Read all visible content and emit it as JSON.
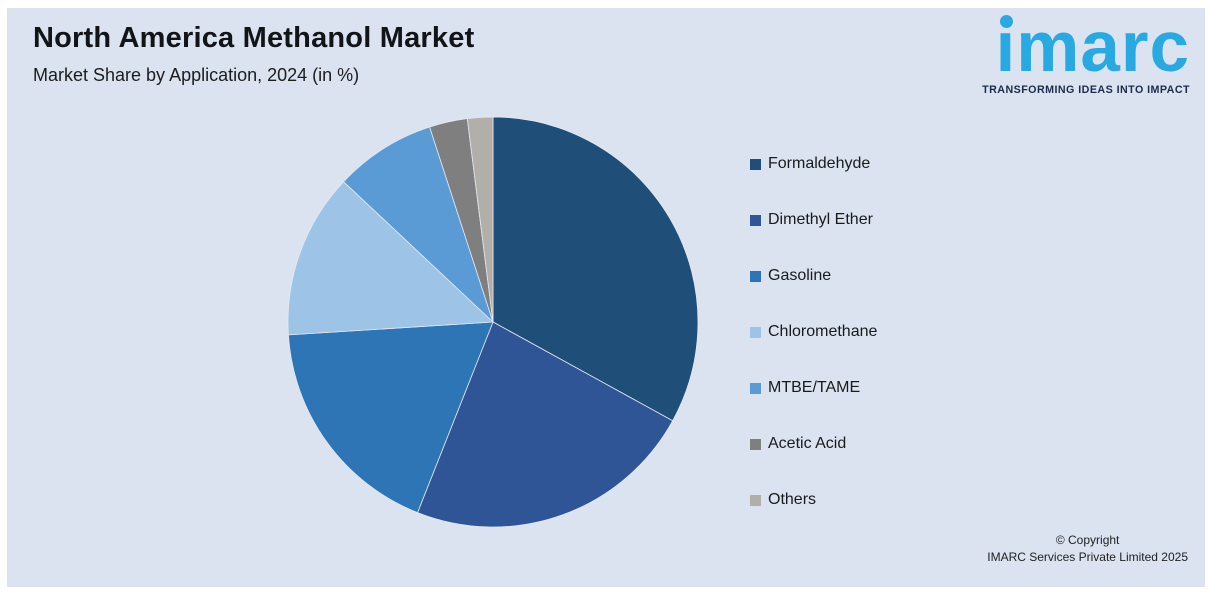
{
  "header": {
    "title": "North America Methanol Market",
    "subtitle": "Market Share by Application, 2024 (in %)"
  },
  "logo": {
    "brand": "imarc",
    "tagline": "TRANSFORMING IDEAS INTO IMPACT",
    "brand_color": "#29a9e1",
    "tagline_color": "#1c2b49"
  },
  "chart_data": {
    "type": "pie",
    "title": "North America Methanol Market",
    "subtitle": "Market Share by Application, 2024 (in %)",
    "unit": "%",
    "categories": [
      "Formaldehyde",
      "Dimethyl Ether",
      "Gasoline",
      "Chloromethane",
      "MTBE/TAME",
      "Acetic Acid",
      "Others"
    ],
    "values": [
      33,
      23,
      18,
      13,
      8,
      3,
      2
    ],
    "colors": [
      "#1f4e79",
      "#2f5597",
      "#2e75b6",
      "#9dc3e6",
      "#5b9bd5",
      "#7f7f7f",
      "#b2aeaa"
    ],
    "start_angle_deg": 0,
    "direction": "clockwise",
    "legend_position": "right",
    "data_labels": "none"
  },
  "footer": {
    "line1": "© Copyright",
    "line2": "IMARC Services Private Limited 2025"
  },
  "style": {
    "panel_background": "#dbe3f1",
    "slice_separator": "#e3e9f5"
  }
}
